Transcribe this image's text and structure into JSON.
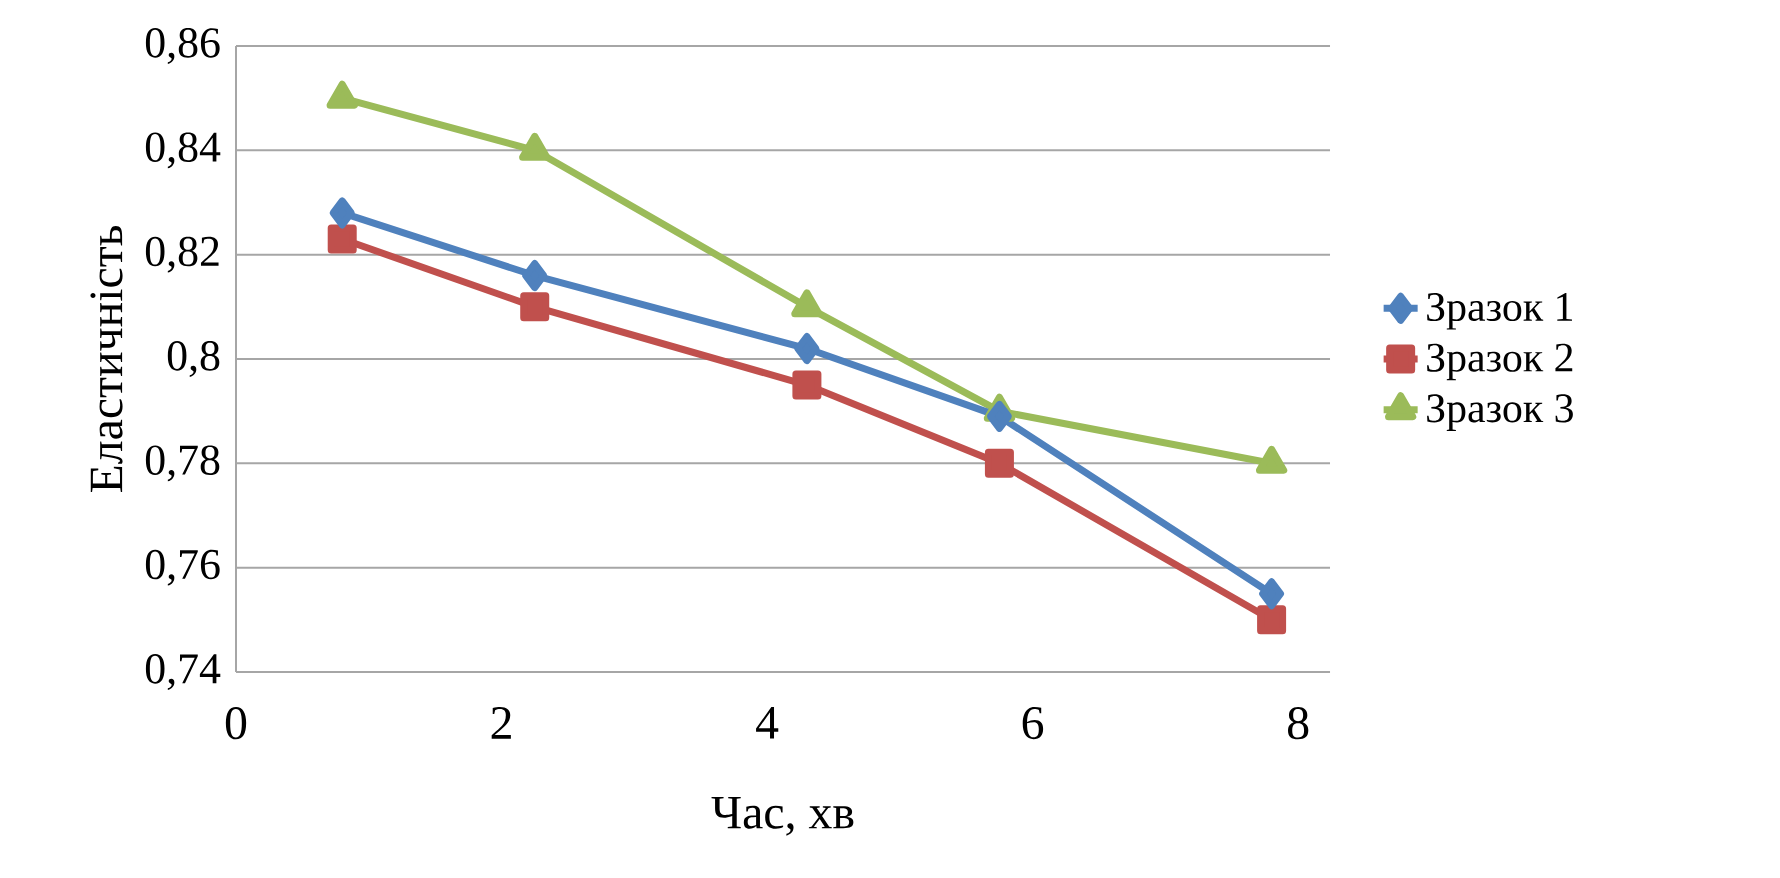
{
  "chart_data": {
    "type": "line",
    "xlabel": "Час, хв",
    "ylabel": "Еластичність",
    "xlim": [
      0,
      8.24
    ],
    "xticks": [
      0,
      2,
      4,
      6,
      8
    ],
    "ylim": [
      0.74,
      0.86
    ],
    "yticks": [
      {
        "value": 0.74,
        "label": "0,74"
      },
      {
        "value": 0.76,
        "label": "0,76"
      },
      {
        "value": 0.78,
        "label": "0,78"
      },
      {
        "value": 0.8,
        "label": "0,8"
      },
      {
        "value": 0.82,
        "label": "0,82"
      },
      {
        "value": 0.84,
        "label": "0,84"
      },
      {
        "value": 0.86,
        "label": "0,86"
      }
    ],
    "grid": "y",
    "legend": "right",
    "line_style": "solid",
    "x": [
      0.8,
      2.25,
      4.3,
      5.75,
      7.8
    ],
    "series": [
      {
        "name": "Зразок 1",
        "color": "#4f81bd",
        "marker": "diamond",
        "values": [
          0.828,
          0.816,
          0.802,
          0.789,
          0.755
        ]
      },
      {
        "name": "Зразок 2",
        "color": "#c0504d",
        "marker": "square",
        "values": [
          0.823,
          0.81,
          0.795,
          0.78,
          0.75
        ]
      },
      {
        "name": "Зразок 3",
        "color": "#9bbb59",
        "marker": "triangle",
        "values": [
          0.85,
          0.84,
          0.81,
          0.79,
          0.78
        ]
      }
    ]
  }
}
